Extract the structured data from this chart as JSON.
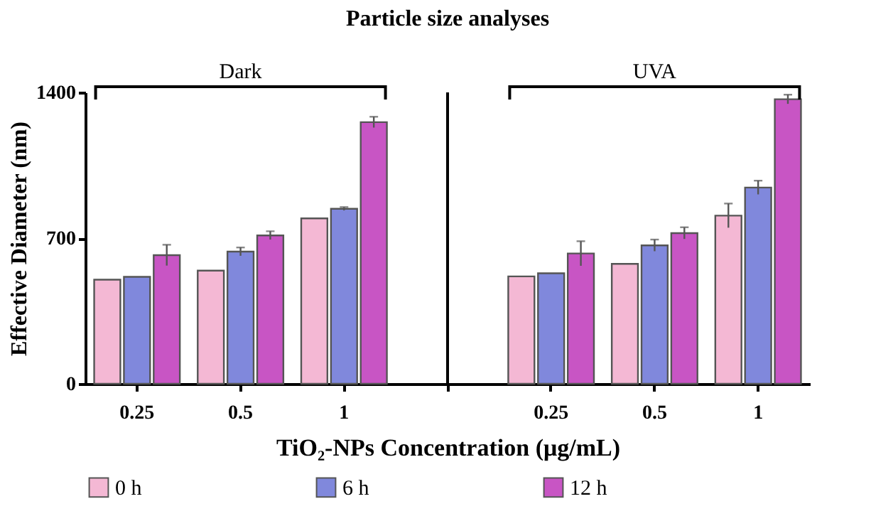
{
  "chart_data": {
    "type": "bar",
    "title": "Particle size analyses",
    "xlabel": "TiO₂-NPs Concentration (μg/mL)",
    "ylabel": "Effective Diameter (nm)",
    "categories": [
      "0.25",
      "0.5",
      "1",
      null,
      "0.25",
      "0.5",
      "1"
    ],
    "series": [
      {
        "name": "0 h",
        "color": "#f4b8d4",
        "values": [
          500,
          544,
          795,
          null,
          516,
          576,
          808
        ],
        "errors": [
          null,
          null,
          null,
          null,
          null,
          null,
          58
        ]
      },
      {
        "name": "6 h",
        "color": "#8088dc",
        "values": [
          514,
          635,
          841,
          null,
          531,
          665,
          943
        ],
        "errors": [
          null,
          20,
          8,
          null,
          null,
          28,
          33
        ]
      },
      {
        "name": "12 h",
        "color": "#c855c4",
        "values": [
          618,
          713,
          1257,
          null,
          626,
          724,
          1367
        ],
        "errors": [
          50,
          20,
          26,
          null,
          59,
          28,
          22
        ]
      }
    ],
    "ylim": [
      0,
      1400
    ],
    "yticks": [
      0,
      700,
      1400
    ],
    "legend": "bottom",
    "annotations": [
      "Dark",
      "UVA"
    ]
  }
}
